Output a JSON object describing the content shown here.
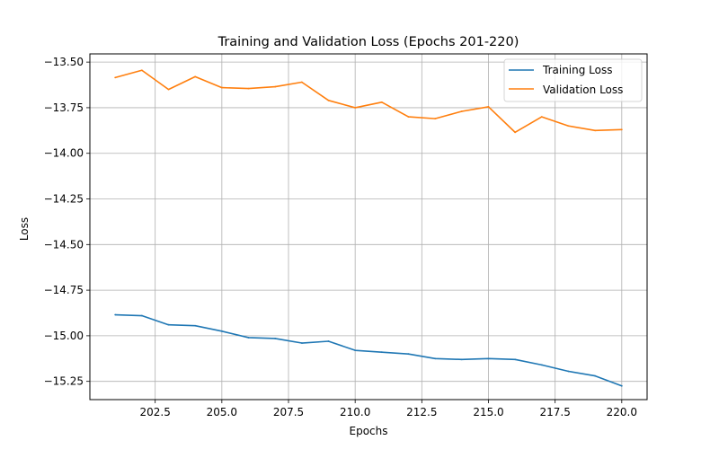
{
  "chart_data": {
    "type": "line",
    "title": "Training and Validation Loss (Epochs 201-220)",
    "xlabel": "Epochs",
    "ylabel": "Loss",
    "xlim": [
      200.05,
      220.95
    ],
    "ylim": [
      -15.35,
      -13.455
    ],
    "xticks": [
      202.5,
      205.0,
      207.5,
      210.0,
      212.5,
      215.0,
      217.5,
      220.0
    ],
    "xtick_labels": [
      "202.5",
      "205.0",
      "207.5",
      "210.0",
      "212.5",
      "215.0",
      "217.5",
      "220.0"
    ],
    "yticks": [
      -13.5,
      -13.75,
      -14.0,
      -14.25,
      -14.5,
      -14.75,
      -15.0,
      -15.25
    ],
    "ytick_labels": [
      "−13.50",
      "−13.75",
      "−14.00",
      "−14.25",
      "−14.50",
      "−14.75",
      "−15.00",
      "−15.25"
    ],
    "grid": true,
    "legend_position": "top-right",
    "x": [
      201,
      202,
      203,
      204,
      205,
      206,
      207,
      208,
      209,
      210,
      211,
      212,
      213,
      214,
      215,
      216,
      217,
      218,
      219,
      220
    ],
    "series": [
      {
        "name": "Training Loss",
        "color": "#1f77b4",
        "values": [
          -14.885,
          -14.89,
          -14.94,
          -14.945,
          -14.975,
          -15.01,
          -15.015,
          -15.04,
          -15.03,
          -15.08,
          -15.09,
          -15.1,
          -15.125,
          -15.13,
          -15.125,
          -15.13,
          -15.16,
          -15.195,
          -15.22,
          -15.275
        ]
      },
      {
        "name": "Validation Loss",
        "color": "#ff7f0e",
        "values": [
          -13.585,
          -13.545,
          -13.65,
          -13.58,
          -13.64,
          -13.645,
          -13.635,
          -13.61,
          -13.71,
          -13.75,
          -13.72,
          -13.8,
          -13.81,
          -13.77,
          -13.745,
          -13.885,
          -13.8,
          -13.85,
          -13.875,
          -13.87
        ]
      }
    ]
  }
}
